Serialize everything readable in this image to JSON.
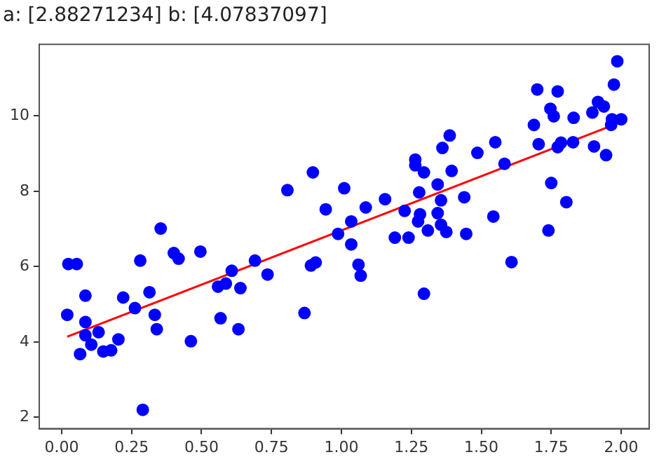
{
  "chart_data": {
    "type": "scatter",
    "title": "a: [2.88271234] b: [4.07837097]",
    "xlim": [
      -0.08,
      2.1
    ],
    "ylim": [
      1.7,
      11.9
    ],
    "xticks": [
      {
        "value": 0,
        "label": "0.00"
      },
      {
        "value": 0.25,
        "label": "0.25"
      },
      {
        "value": 0.5,
        "label": "0.50"
      },
      {
        "value": 0.75,
        "label": "0.75"
      },
      {
        "value": 1,
        "label": "1.00"
      },
      {
        "value": 1.25,
        "label": "1.25"
      },
      {
        "value": 1.5,
        "label": "1.50"
      },
      {
        "value": 1.75,
        "label": "1.75"
      },
      {
        "value": 2,
        "label": "2.00"
      }
    ],
    "yticks": [
      2,
      4,
      6,
      8,
      10
    ],
    "grid": false,
    "legend": false,
    "marker": "circle",
    "series": [
      {
        "color": "#0000ff",
        "x": [
          0.024,
          0.054,
          0.02,
          0.066,
          0.085,
          0.085,
          0.085,
          0.106,
          0.132,
          0.149,
          0.177,
          0.203,
          0.22,
          0.262,
          0.281,
          0.29,
          0.314,
          0.333,
          0.34,
          0.354,
          0.401,
          0.418,
          0.462,
          0.496,
          0.559,
          0.587,
          0.568,
          0.608,
          0.639,
          0.632,
          0.691,
          0.736,
          0.807,
          0.868,
          0.898,
          0.891,
          0.908,
          0.944,
          0.988,
          1.01,
          1.035,
          1.035,
          1.061,
          1.069,
          1.087,
          1.156,
          1.191,
          1.24,
          1.226,
          1.264,
          1.264,
          1.295,
          1.278,
          1.281,
          1.274,
          1.309,
          1.295,
          1.344,
          1.356,
          1.344,
          1.356,
          1.375,
          1.361,
          1.387,
          1.394,
          1.439,
          1.446,
          1.486,
          1.55,
          1.583,
          1.543,
          1.608,
          1.688,
          1.7,
          1.705,
          1.773,
          1.747,
          1.759,
          1.773,
          1.785,
          1.828,
          1.83,
          1.75,
          1.804,
          1.74,
          1.897,
          1.917,
          1.938,
          1.903,
          1.946,
          1.964,
          1.967,
          2.0,
          1.974,
          1.986
        ],
        "values": [
          6.07,
          6.07,
          4.72,
          3.68,
          5.23,
          4.53,
          4.18,
          3.93,
          4.26,
          3.75,
          3.78,
          4.07,
          5.18,
          4.9,
          6.16,
          2.2,
          5.32,
          4.72,
          4.34,
          7.01,
          6.36,
          6.21,
          4.02,
          6.4,
          5.47,
          5.55,
          4.63,
          5.89,
          5.43,
          4.34,
          6.16,
          5.79,
          8.03,
          4.77,
          8.5,
          6.03,
          6.11,
          7.52,
          6.87,
          8.08,
          7.2,
          6.59,
          6.05,
          5.76,
          7.57,
          7.79,
          6.77,
          6.77,
          7.48,
          8.84,
          8.69,
          8.5,
          7.97,
          7.39,
          7.2,
          6.96,
          5.28,
          8.18,
          7.76,
          7.42,
          7.11,
          6.92,
          9.15,
          9.48,
          8.54,
          7.84,
          6.87,
          9.02,
          9.3,
          8.73,
          7.33,
          6.12,
          9.76,
          10.7,
          9.25,
          10.65,
          10.19,
          9.99,
          9.17,
          9.29,
          9.3,
          9.95,
          8.22,
          7.71,
          6.96,
          10.09,
          10.37,
          10.25,
          9.19,
          8.96,
          9.76,
          9.91,
          9.91,
          10.83,
          11.45
        ]
      },
      {
        "type": "line",
        "color": "#ff0000",
        "x": [
          0.02,
          1.99
        ],
        "values": [
          4.14,
          9.81
        ],
        "marker": "none"
      }
    ]
  }
}
